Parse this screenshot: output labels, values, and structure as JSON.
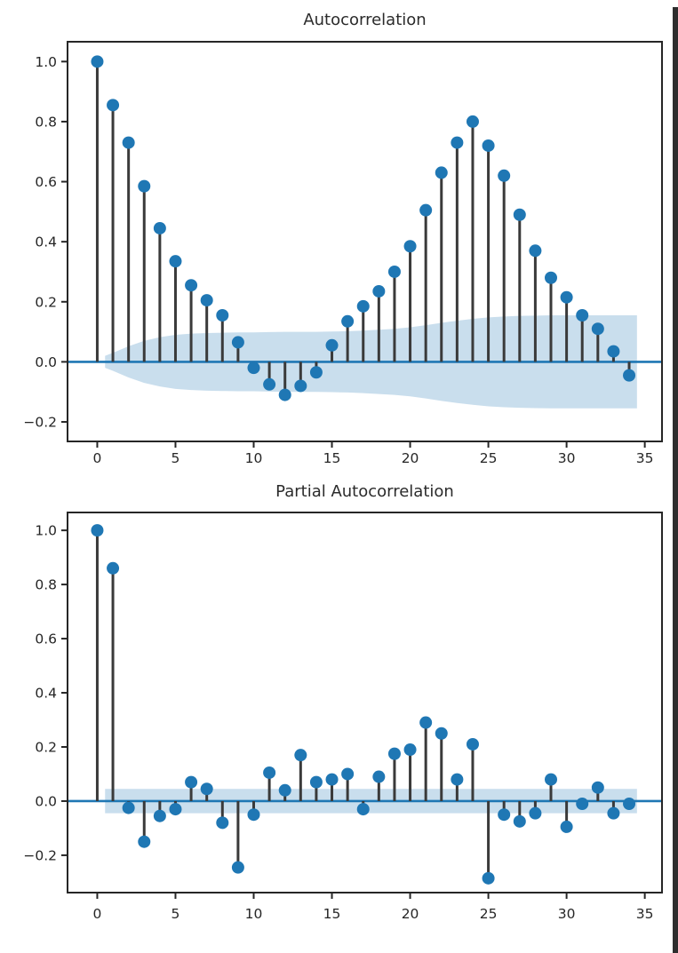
{
  "figure": {
    "background": "#ffffff",
    "right_edge_bar_color": "#2e2e2e"
  },
  "colors": {
    "marker": "#1f77b4",
    "stem": "#3a3a3a",
    "zero_line": "#1f77b4",
    "band": "rgba(31,119,180,0.24)",
    "axis": "#262626",
    "tick_label": "#262626"
  },
  "chart_data": [
    {
      "type": "stem",
      "title": "Autocorrelation",
      "x": [
        0,
        1,
        2,
        3,
        4,
        5,
        6,
        7,
        8,
        9,
        10,
        11,
        12,
        13,
        14,
        15,
        16,
        17,
        18,
        19,
        20,
        21,
        22,
        23,
        24,
        25,
        26,
        27,
        28,
        29,
        30,
        31,
        32,
        33,
        34
      ],
      "values": [
        1.0,
        0.855,
        0.73,
        0.585,
        0.445,
        0.335,
        0.255,
        0.205,
        0.155,
        0.065,
        -0.02,
        -0.075,
        -0.11,
        -0.08,
        -0.035,
        0.055,
        0.135,
        0.185,
        0.235,
        0.3,
        0.385,
        0.505,
        0.63,
        0.73,
        0.8,
        0.72,
        0.62,
        0.49,
        0.37,
        0.28,
        0.215,
        0.155,
        0.11,
        0.035,
        -0.045
      ],
      "conf_band": {
        "symmetric": true,
        "x": [
          0.5,
          1,
          2,
          3,
          4,
          5,
          6,
          7,
          8,
          9,
          10,
          11,
          12,
          13,
          14,
          15,
          16,
          17,
          18,
          19,
          20,
          21,
          22,
          23,
          24,
          25,
          26,
          27,
          28,
          29,
          30,
          31,
          32,
          33,
          34,
          34.5
        ],
        "upper": [
          0.02,
          0.03,
          0.052,
          0.07,
          0.082,
          0.09,
          0.094,
          0.096,
          0.097,
          0.098,
          0.098,
          0.099,
          0.1,
          0.1,
          0.1,
          0.101,
          0.102,
          0.104,
          0.107,
          0.11,
          0.115,
          0.122,
          0.13,
          0.137,
          0.143,
          0.148,
          0.151,
          0.153,
          0.154,
          0.155,
          0.155,
          0.155,
          0.155,
          0.155,
          0.155,
          0.155
        ]
      },
      "x_ticks": [
        {
          "v": 0,
          "label": "0"
        },
        {
          "v": 5,
          "label": "5"
        },
        {
          "v": 10,
          "label": "10"
        },
        {
          "v": 15,
          "label": "15"
        },
        {
          "v": 20,
          "label": "20"
        },
        {
          "v": 25,
          "label": "25"
        },
        {
          "v": 30,
          "label": "30"
        },
        {
          "v": 35,
          "label": "35"
        }
      ],
      "y_ticks": [
        {
          "v": 1.0,
          "label": "1.0"
        },
        {
          "v": 0.8,
          "label": "0.8"
        },
        {
          "v": 0.6,
          "label": "0.6"
        },
        {
          "v": 0.4,
          "label": "0.4"
        },
        {
          "v": 0.2,
          "label": "0.2"
        },
        {
          "v": 0.0,
          "label": "0.0"
        },
        {
          "v": -0.2,
          "label": "−0.2"
        }
      ],
      "xlim": [
        -1.9,
        36.1
      ],
      "ylim": [
        -0.265,
        1.066
      ],
      "grid": false,
      "legend": null
    },
    {
      "type": "stem",
      "title": "Partial Autocorrelation",
      "x": [
        0,
        1,
        2,
        3,
        4,
        5,
        6,
        7,
        8,
        9,
        10,
        11,
        12,
        13,
        14,
        15,
        16,
        17,
        18,
        19,
        20,
        21,
        22,
        23,
        24,
        25,
        26,
        27,
        28,
        29,
        30,
        31,
        32,
        33,
        34
      ],
      "values": [
        1.0,
        0.86,
        -0.025,
        -0.15,
        -0.055,
        -0.03,
        0.07,
        0.045,
        -0.08,
        -0.245,
        -0.05,
        0.105,
        0.04,
        0.17,
        0.07,
        0.08,
        0.1,
        -0.03,
        0.09,
        0.175,
        0.19,
        0.29,
        0.25,
        0.08,
        0.21,
        -0.285,
        -0.05,
        -0.075,
        -0.045,
        0.08,
        -0.095,
        -0.01,
        0.05,
        -0.045,
        -0.01
      ],
      "conf_band": {
        "symmetric": true,
        "x": [
          0.5,
          34.5
        ],
        "upper": [
          0.045,
          0.045
        ]
      },
      "x_ticks": [
        {
          "v": 0,
          "label": "0"
        },
        {
          "v": 5,
          "label": "5"
        },
        {
          "v": 10,
          "label": "10"
        },
        {
          "v": 15,
          "label": "15"
        },
        {
          "v": 20,
          "label": "20"
        },
        {
          "v": 25,
          "label": "25"
        },
        {
          "v": 30,
          "label": "30"
        },
        {
          "v": 35,
          "label": "35"
        }
      ],
      "y_ticks": [
        {
          "v": 1.0,
          "label": "1.0"
        },
        {
          "v": 0.8,
          "label": "0.8"
        },
        {
          "v": 0.6,
          "label": "0.6"
        },
        {
          "v": 0.4,
          "label": "0.4"
        },
        {
          "v": 0.2,
          "label": "0.2"
        },
        {
          "v": 0.0,
          "label": "0.0"
        },
        {
          "v": -0.2,
          "label": "−0.2"
        }
      ],
      "xlim": [
        -1.9,
        36.1
      ],
      "ylim": [
        -0.338,
        1.066
      ],
      "grid": false,
      "legend": null
    }
  ]
}
